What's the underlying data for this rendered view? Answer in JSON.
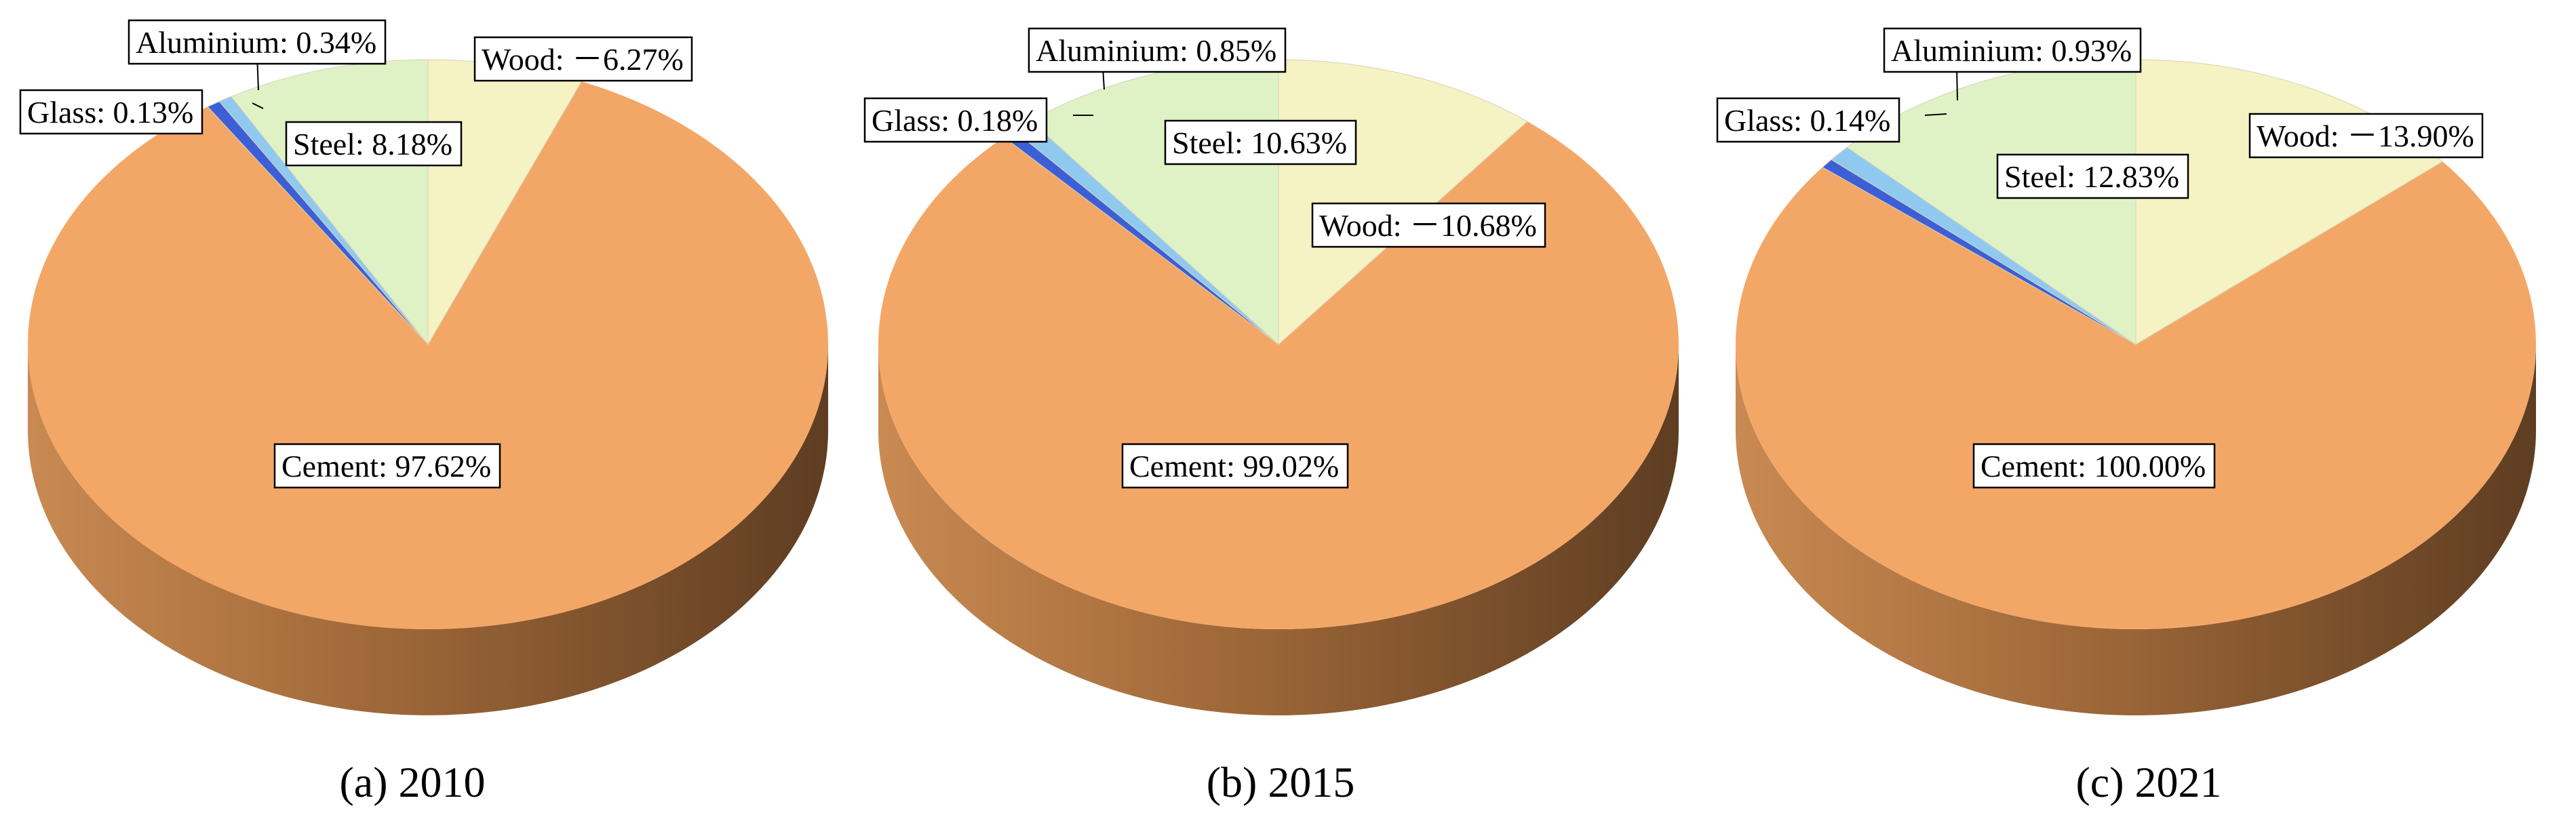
{
  "chart_data": [
    {
      "type": "pie",
      "caption": "(a) 2010",
      "slices": [
        {
          "name": "Cement",
          "value": 97.62,
          "label": "Cement: 97.62%",
          "color": "#f3a767"
        },
        {
          "name": "Glass",
          "value": 0.13,
          "label": "Glass: 0.13%",
          "color": "#3d5fd6"
        },
        {
          "name": "Aluminium",
          "value": 0.34,
          "label": "Aluminium: 0.34%",
          "color": "#90c9f0"
        },
        {
          "name": "Steel",
          "value": 8.18,
          "label": "Steel: 8.18%",
          "color": "#dff2c6"
        },
        {
          "name": "Wood",
          "value": -6.27,
          "label": "Wood: －6.27%",
          "color": "#f5f2c3"
        }
      ]
    },
    {
      "type": "pie",
      "caption": "(b) 2015",
      "slices": [
        {
          "name": "Cement",
          "value": 99.02,
          "label": "Cement: 99.02%",
          "color": "#f3a767"
        },
        {
          "name": "Glass",
          "value": 0.18,
          "label": "Glass: 0.18%",
          "color": "#3d5fd6"
        },
        {
          "name": "Aluminium",
          "value": 0.85,
          "label": "Aluminium: 0.85%",
          "color": "#90c9f0"
        },
        {
          "name": "Steel",
          "value": 10.63,
          "label": "Steel: 10.63%",
          "color": "#dff2c6"
        },
        {
          "name": "Wood",
          "value": -10.68,
          "label": "Wood: －10.68%",
          "color": "#f5f2c3"
        }
      ]
    },
    {
      "type": "pie",
      "caption": "(c) 2021",
      "slices": [
        {
          "name": "Cement",
          "value": 100.0,
          "label": "Cement: 100.00%",
          "color": "#f3a767"
        },
        {
          "name": "Glass",
          "value": 0.14,
          "label": "Glass: 0.14%",
          "color": "#3d5fd6"
        },
        {
          "name": "Aluminium",
          "value": 0.93,
          "label": "Aluminium: 0.93%",
          "color": "#90c9f0"
        },
        {
          "name": "Steel",
          "value": 12.83,
          "label": "Steel: 12.83%",
          "color": "#dff2c6"
        },
        {
          "name": "Wood",
          "value": -13.9,
          "label": "Wood: －13.90%",
          "color": "#f5f2c3"
        }
      ]
    }
  ]
}
